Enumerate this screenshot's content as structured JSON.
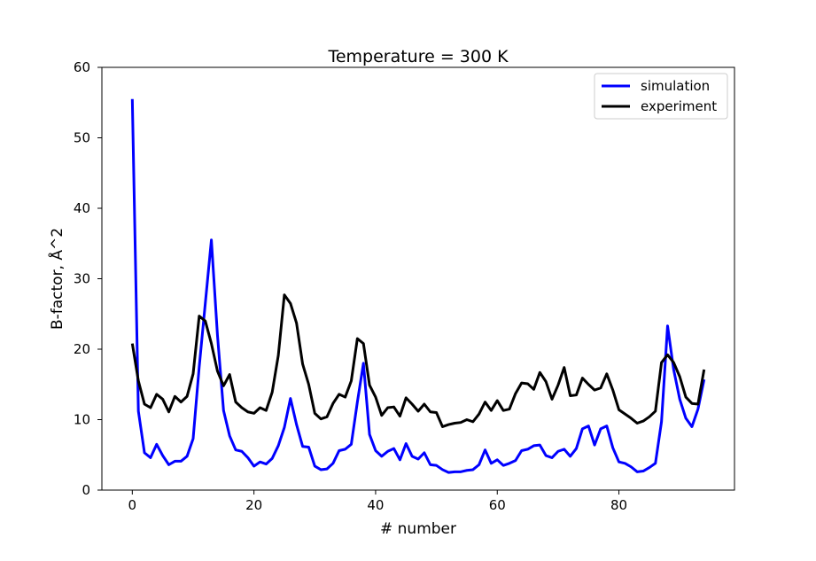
{
  "chart_data": {
    "type": "line",
    "title": "Temperature = 300 K",
    "xlabel": "# number",
    "ylabel": "B-factor, Å^2",
    "xlim": [
      -5,
      99
    ],
    "ylim": [
      0,
      60
    ],
    "xticks": [
      0,
      20,
      40,
      60,
      80
    ],
    "yticks": [
      0,
      10,
      20,
      30,
      40,
      50,
      60
    ],
    "grid": false,
    "legend_position": "top-right",
    "series": [
      {
        "name": "simulation",
        "color": "#0000ff",
        "x": [
          0,
          1,
          2,
          3,
          4,
          5,
          6,
          7,
          8,
          9,
          10,
          11,
          12,
          13,
          14,
          15,
          16,
          17,
          18,
          19,
          20,
          21,
          22,
          23,
          24,
          25,
          26,
          27,
          28,
          29,
          30,
          31,
          32,
          33,
          34,
          35,
          36,
          37,
          38,
          39,
          40,
          41,
          42,
          43,
          44,
          45,
          46,
          47,
          48,
          49,
          50,
          51,
          52,
          53,
          54,
          55,
          56,
          57,
          58,
          59,
          60,
          61,
          62,
          63,
          64,
          65,
          66,
          67,
          68,
          69,
          70,
          71,
          72,
          73,
          74,
          75,
          76,
          77,
          78,
          79,
          80,
          81,
          82,
          83,
          84,
          85,
          86,
          87,
          88,
          89,
          90,
          91,
          92,
          93,
          94
        ],
        "y": [
          55.5,
          11.2,
          5.3,
          4.6,
          6.5,
          4.9,
          3.6,
          4.1,
          4.1,
          4.8,
          7.3,
          17.5,
          26.5,
          35.5,
          22,
          11.3,
          7.7,
          5.7,
          5.5,
          4.6,
          3.4,
          4,
          3.7,
          4.5,
          6.3,
          8.9,
          13,
          9.3,
          6.2,
          6.1,
          3.4,
          2.9,
          3,
          3.8,
          5.6,
          5.8,
          6.5,
          12.5,
          18,
          7.9,
          5.6,
          4.8,
          5.5,
          5.9,
          4.3,
          6.6,
          4.8,
          4.4,
          5.3,
          3.6,
          3.5,
          2.9,
          2.5,
          2.6,
          2.6,
          2.8,
          2.9,
          3.6,
          5.7,
          3.8,
          4.3,
          3.5,
          3.8,
          4.2,
          5.6,
          5.8,
          6.3,
          6.4,
          4.9,
          4.6,
          5.5,
          5.8,
          4.8,
          5.9,
          8.7,
          9.1,
          6.4,
          8.7,
          9.1,
          6,
          4,
          3.8,
          3.3,
          2.6,
          2.7,
          3.2,
          3.8,
          9.7,
          23.3,
          17.1,
          12.9,
          10.2,
          9,
          11.5,
          15.7
        ]
      },
      {
        "name": "experiment",
        "color": "#000000",
        "x": [
          0,
          1,
          2,
          3,
          4,
          5,
          6,
          7,
          8,
          9,
          10,
          11,
          12,
          13,
          14,
          15,
          16,
          17,
          18,
          19,
          20,
          21,
          22,
          23,
          24,
          25,
          26,
          27,
          28,
          29,
          30,
          31,
          32,
          33,
          34,
          35,
          36,
          37,
          38,
          39,
          40,
          41,
          42,
          43,
          44,
          45,
          46,
          47,
          48,
          49,
          50,
          51,
          52,
          53,
          54,
          55,
          56,
          57,
          58,
          59,
          60,
          61,
          62,
          63,
          64,
          65,
          66,
          67,
          68,
          69,
          70,
          71,
          72,
          73,
          74,
          75,
          76,
          77,
          78,
          79,
          80,
          81,
          82,
          83,
          84,
          85,
          86,
          87,
          88,
          89,
          90,
          91,
          92,
          93,
          94
        ],
        "y": [
          20.8,
          15.5,
          12.2,
          11.7,
          13.6,
          12.9,
          11.1,
          13.3,
          12.5,
          13.3,
          16.5,
          24.7,
          24,
          20.8,
          16.9,
          14.8,
          16.4,
          12.5,
          11.7,
          11.1,
          10.9,
          11.7,
          11.3,
          13.9,
          19.1,
          27.7,
          26.5,
          23.7,
          17.9,
          15,
          10.9,
          10.1,
          10.4,
          12.3,
          13.6,
          13.2,
          15.5,
          21.5,
          20.8,
          14.9,
          13.2,
          10.6,
          11.7,
          11.8,
          10.5,
          13.1,
          12.2,
          11.2,
          12.2,
          11.1,
          11,
          9,
          9.3,
          9.5,
          9.6,
          10,
          9.7,
          10.8,
          12.5,
          11.3,
          12.7,
          11.3,
          11.5,
          13.7,
          15.2,
          15.1,
          14.3,
          16.7,
          15.4,
          12.9,
          14.9,
          17.4,
          13.4,
          13.5,
          15.9,
          15,
          14.2,
          14.5,
          16.5,
          14.2,
          11.4,
          10.8,
          10.2,
          9.5,
          9.8,
          10.4,
          11.2,
          18.1,
          19.2,
          18.1,
          16.1,
          13.2,
          12.3,
          12.2,
          17.1
        ]
      }
    ]
  }
}
